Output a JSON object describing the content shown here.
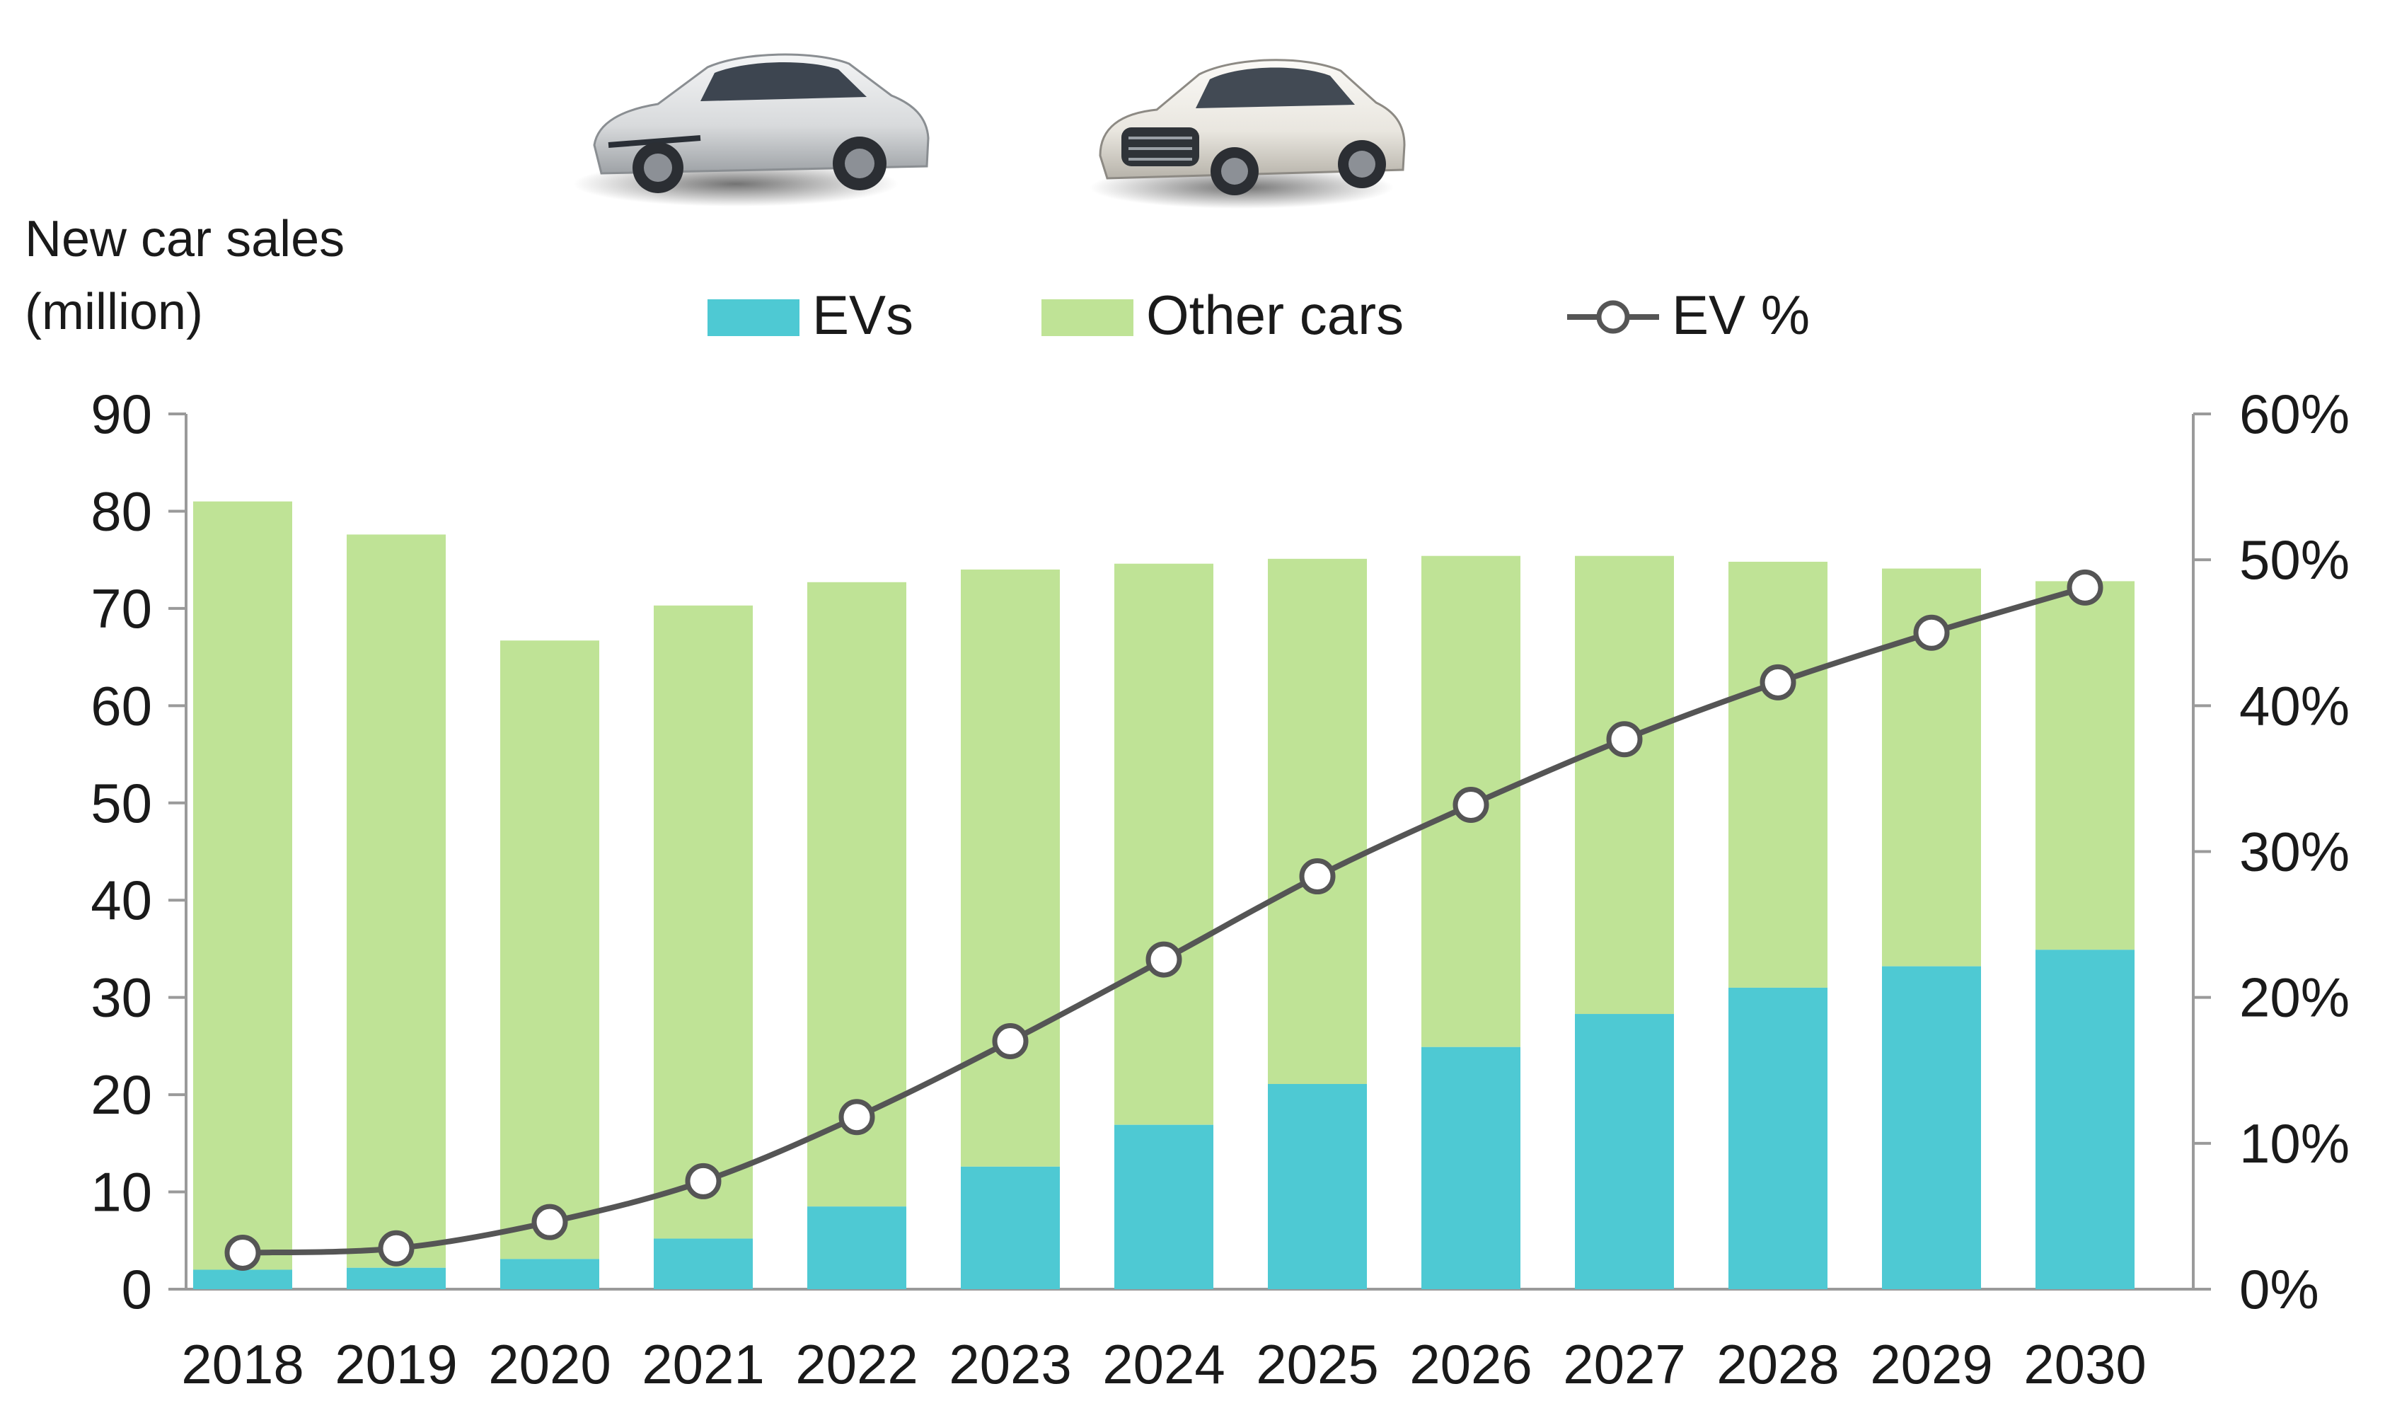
{
  "chart_data": {
    "type": "bar",
    "stacked": true,
    "title": "",
    "ylabel": "New car sales (million)",
    "ylabel_lines": [
      "New car sales",
      "(million)"
    ],
    "xlabel": "",
    "categories": [
      "2018",
      "2019",
      "2020",
      "2021",
      "2022",
      "2023",
      "2024",
      "2025",
      "2026",
      "2027",
      "2028",
      "2029",
      "2030"
    ],
    "ylim": [
      0,
      90
    ],
    "yticks": [
      0,
      10,
      20,
      30,
      40,
      50,
      60,
      70,
      80,
      90
    ],
    "y2lim": [
      0,
      0.6
    ],
    "y2ticks": [
      "0%",
      "10%",
      "20%",
      "30%",
      "40%",
      "50%",
      "60%"
    ],
    "grid": false,
    "legend_position": "top",
    "series": [
      {
        "name": "EVs",
        "kind": "bar",
        "color": "#4ec9d3",
        "values": [
          2.0,
          2.2,
          3.1,
          5.2,
          8.5,
          12.6,
          16.9,
          21.1,
          24.9,
          28.3,
          31.0,
          33.2,
          34.9
        ]
      },
      {
        "name": "Other cars",
        "kind": "bar",
        "color": "#bfe396",
        "values": [
          79.0,
          75.4,
          63.6,
          65.1,
          64.2,
          61.4,
          57.7,
          54.0,
          50.5,
          47.1,
          43.8,
          40.9,
          37.9
        ]
      },
      {
        "name": "EV %",
        "kind": "line",
        "axis": "right",
        "color": "#555555",
        "values": [
          0.025,
          0.028,
          0.046,
          0.074,
          0.118,
          0.17,
          0.226,
          0.283,
          0.332,
          0.377,
          0.416,
          0.45,
          0.481
        ]
      }
    ]
  },
  "images": {
    "car_left": "silver-ev-sedan",
    "car_right": "white-luxury-sedan"
  }
}
